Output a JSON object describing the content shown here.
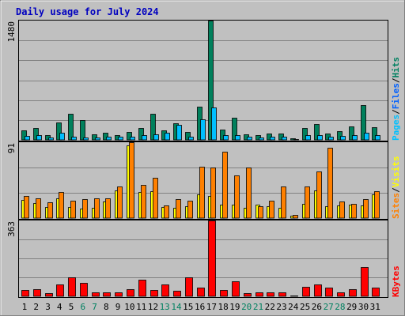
{
  "chart_data": [
    {
      "type": "bar",
      "title": "Daily usage for July 2024",
      "panel": "top",
      "y_max_label": "1480",
      "ylim": [
        0,
        1480
      ],
      "categories": [
        "1",
        "2",
        "3",
        "4",
        "5",
        "6",
        "7",
        "8",
        "9",
        "10",
        "11",
        "12",
        "13",
        "14",
        "15",
        "16",
        "17",
        "18",
        "19",
        "20",
        "21",
        "22",
        "23",
        "24",
        "25",
        "26",
        "27",
        "28",
        "29",
        "30",
        "31"
      ],
      "series": [
        {
          "name": "Hits",
          "color": "#00805c",
          "values": [
            115,
            145,
            55,
            215,
            320,
            245,
            70,
            90,
            55,
            95,
            145,
            320,
            120,
            205,
            100,
            410,
            1480,
            130,
            270,
            65,
            60,
            80,
            75,
            15,
            145,
            195,
            80,
            110,
            165,
            430,
            160
          ]
        },
        {
          "name": "Files",
          "color": "#00bfff",
          "values": [
            50,
            60,
            25,
            90,
            35,
            30,
            30,
            40,
            35,
            40,
            60,
            70,
            90,
            190,
            40,
            250,
            405,
            55,
            60,
            40,
            30,
            35,
            40,
            10,
            55,
            55,
            35,
            45,
            60,
            90,
            60
          ]
        },
        {
          "name": "Pages",
          "color": "#00bfff",
          "values": [
            0,
            0,
            0,
            0,
            0,
            0,
            0,
            0,
            0,
            0,
            0,
            0,
            0,
            0,
            0,
            0,
            0,
            0,
            0,
            0,
            0,
            0,
            0,
            0,
            0,
            0,
            0,
            0,
            0,
            0,
            0
          ]
        }
      ],
      "legend": [
        {
          "text": "Pages",
          "color": "#00c0ff"
        },
        {
          "text": "/",
          "color": "#000000"
        },
        {
          "text": "Files",
          "color": "#0060ff"
        },
        {
          "text": "/",
          "color": "#000000"
        },
        {
          "text": "Hits",
          "color": "#008060"
        }
      ]
    },
    {
      "type": "bar",
      "panel": "middle",
      "y_max_label": "91",
      "ylim": [
        0,
        91
      ],
      "categories": [
        "1",
        "2",
        "3",
        "4",
        "5",
        "6",
        "7",
        "8",
        "9",
        "10",
        "11",
        "12",
        "13",
        "14",
        "15",
        "16",
        "17",
        "18",
        "19",
        "20",
        "21",
        "22",
        "23",
        "24",
        "25",
        "26",
        "27",
        "28",
        "29",
        "30",
        "31"
      ],
      "series": [
        {
          "name": "Sites",
          "color": "#ffff00",
          "values": [
            22,
            18,
            13,
            24,
            13,
            11,
            12,
            20,
            33,
            87,
            31,
            32,
            13,
            12,
            14,
            28,
            27,
            16,
            16,
            12,
            16,
            14,
            12,
            3,
            17,
            33,
            14,
            15,
            16,
            15,
            28
          ]
        },
        {
          "name": "Visits",
          "color": "#ff8000",
          "values": [
            27,
            24,
            19,
            31,
            21,
            23,
            24,
            24,
            38,
            91,
            40,
            48,
            15,
            23,
            21,
            62,
            61,
            80,
            51,
            61,
            14,
            21,
            38,
            4,
            38,
            56,
            84,
            20,
            17,
            23,
            32
          ]
        }
      ],
      "legend": [
        {
          "text": "Sites",
          "color": "#ff8000"
        },
        {
          "text": "/",
          "color": "#000000"
        },
        {
          "text": "Visits",
          "color": "#ffff00"
        }
      ]
    },
    {
      "type": "bar",
      "panel": "bottom",
      "y_max_label": "363",
      "ylim": [
        0,
        363
      ],
      "categories": [
        "1",
        "2",
        "3",
        "4",
        "5",
        "6",
        "7",
        "8",
        "9",
        "10",
        "11",
        "12",
        "13",
        "14",
        "15",
        "16",
        "17",
        "18",
        "19",
        "20",
        "21",
        "22",
        "23",
        "24",
        "25",
        "26",
        "27",
        "28",
        "29",
        "30",
        "31"
      ],
      "weekend_days": [
        "6",
        "7",
        "13",
        "14",
        "20",
        "21",
        "27",
        "28"
      ],
      "series": [
        {
          "name": "KBytes",
          "color": "#ff0000",
          "values": [
            30,
            35,
            15,
            55,
            90,
            65,
            20,
            20,
            20,
            35,
            80,
            30,
            55,
            25,
            90,
            40,
            363,
            30,
            70,
            15,
            20,
            20,
            20,
            5,
            45,
            55,
            40,
            20,
            35,
            140,
            40
          ]
        }
      ],
      "legend": [
        {
          "text": "KBytes",
          "color": "#ff0000"
        }
      ]
    }
  ]
}
